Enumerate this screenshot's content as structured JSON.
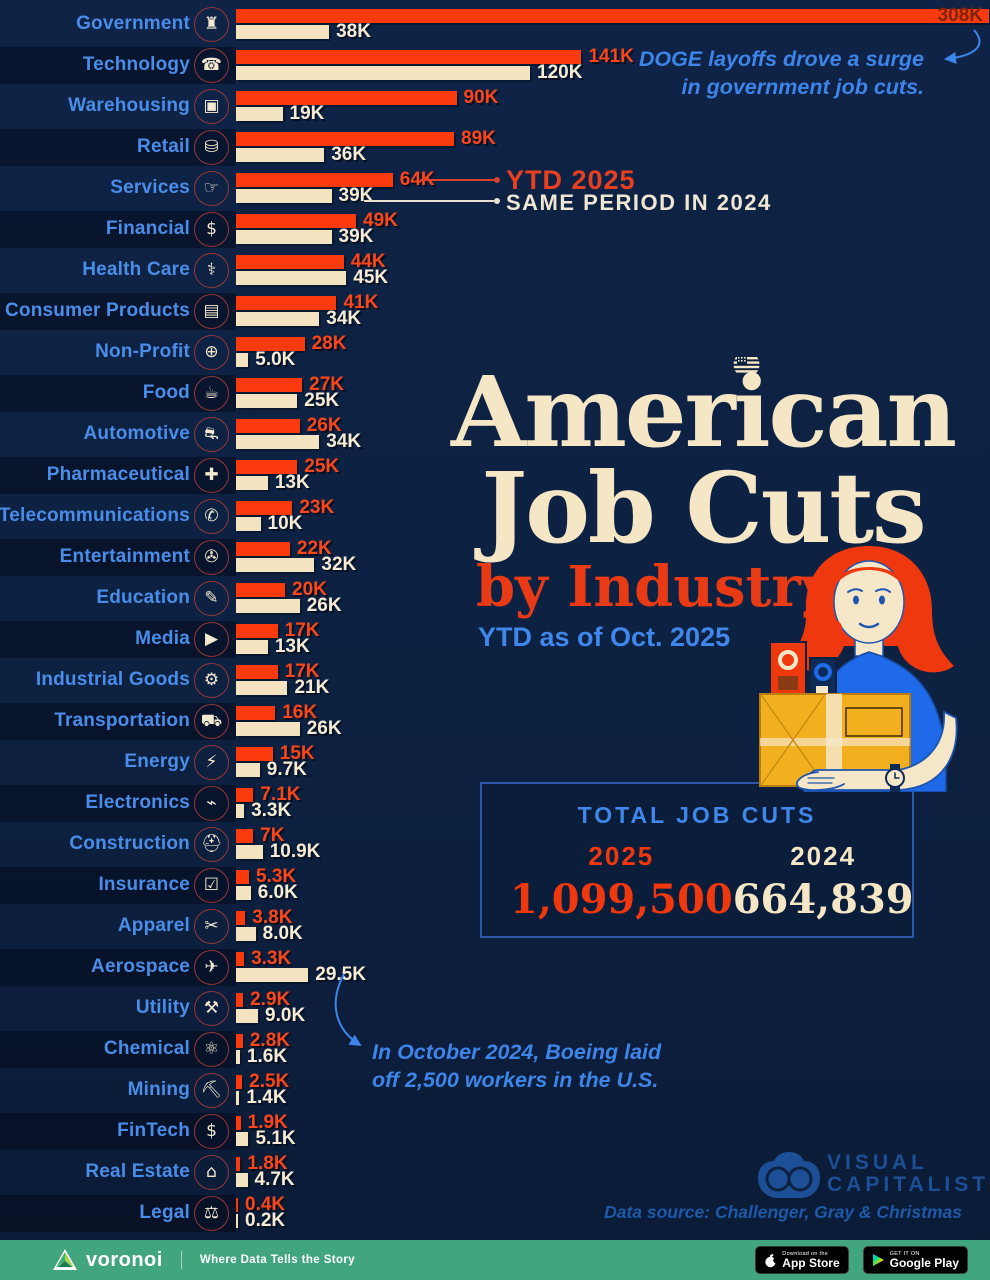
{
  "header": {
    "title_line1": "American",
    "title_line2": "Job Cuts",
    "subtitle": "by Industry",
    "period": "YTD as of Oct. 2025"
  },
  "legend": {
    "ytd_label": "YTD 2025",
    "same_label": "SAME PERIOD IN 2024"
  },
  "annotations": {
    "doge": [
      "DOGE layoffs drove a surge",
      "in government job cuts."
    ],
    "boeing": [
      "In October 2024, Boeing laid",
      "off 2,500 workers in the U.S."
    ]
  },
  "totals": {
    "heading": "TOTAL JOB CUTS",
    "y2025_label": "2025",
    "y2025_value": "1,099,500",
    "y2024_label": "2024",
    "y2024_value": "664,839"
  },
  "chart_data": {
    "type": "bar",
    "orientation": "horizontal",
    "title": "American Job Cuts by Industry",
    "subtitle": "YTD as of Oct. 2025",
    "unit": "thousands of job cuts (K)",
    "xlim_k": [
      0,
      310
    ],
    "grid": false,
    "legend_position": "inline at Services row",
    "categories": [
      "Government",
      "Technology",
      "Warehousing",
      "Retail",
      "Services",
      "Financial",
      "Health Care",
      "Consumer Products",
      "Non-Profit",
      "Food",
      "Automotive",
      "Pharmaceutical",
      "Telecommunications",
      "Entertainment",
      "Education",
      "Media",
      "Industrial Goods",
      "Transportation",
      "Energy",
      "Electronics",
      "Construction",
      "Insurance",
      "Apparel",
      "Aerospace",
      "Utility",
      "Chemical",
      "Mining",
      "FinTech",
      "Real Estate",
      "Legal"
    ],
    "icons": [
      {
        "name": "bank-icon",
        "glyph": "♜"
      },
      {
        "name": "smartphone-icon",
        "glyph": "☎"
      },
      {
        "name": "package-icon",
        "glyph": "▣"
      },
      {
        "name": "shopping-cart-icon",
        "glyph": "⛁"
      },
      {
        "name": "hand-icon",
        "glyph": "☞"
      },
      {
        "name": "dollar-icon",
        "glyph": "$"
      },
      {
        "name": "heart-cross-icon",
        "glyph": "⚕"
      },
      {
        "name": "shopping-bag-icon",
        "glyph": "▤"
      },
      {
        "name": "globe-icon",
        "glyph": "⊕"
      },
      {
        "name": "utensils-icon",
        "glyph": "☕"
      },
      {
        "name": "car-icon",
        "glyph": "⛐"
      },
      {
        "name": "pill-icon",
        "glyph": "✚"
      },
      {
        "name": "headset-icon",
        "glyph": "✆"
      },
      {
        "name": "movie-camera-icon",
        "glyph": "✇"
      },
      {
        "name": "graduation-cap-icon",
        "glyph": "✎"
      },
      {
        "name": "play-icon",
        "glyph": "▶"
      },
      {
        "name": "factory-icon",
        "glyph": "⚙"
      },
      {
        "name": "truck-icon",
        "glyph": "⛟"
      },
      {
        "name": "lightning-icon",
        "glyph": "⚡"
      },
      {
        "name": "plug-icon",
        "glyph": "⌁"
      },
      {
        "name": "hard-hat-icon",
        "glyph": "⛑"
      },
      {
        "name": "shield-check-icon",
        "glyph": "☑"
      },
      {
        "name": "tshirt-icon",
        "glyph": "✂"
      },
      {
        "name": "plane-icon",
        "glyph": "✈"
      },
      {
        "name": "crossed-tools-icon",
        "glyph": "⚒"
      },
      {
        "name": "molecule-icon",
        "glyph": "⚛"
      },
      {
        "name": "pickaxe-icon",
        "glyph": "⛏"
      },
      {
        "name": "chip-dollar-icon",
        "glyph": "$"
      },
      {
        "name": "house-icon",
        "glyph": "⌂"
      },
      {
        "name": "gavel-icon",
        "glyph": "⚖"
      }
    ],
    "series": [
      {
        "name": "YTD 2025",
        "color": "#FA3A0C",
        "values_k": [
          308,
          141,
          90,
          89,
          64,
          49,
          44,
          41,
          28,
          27,
          26,
          25,
          23,
          22,
          20,
          17,
          17,
          16,
          15,
          7.1,
          7,
          5.3,
          3.8,
          3.3,
          2.9,
          2.8,
          2.5,
          1.9,
          1.8,
          0.4
        ],
        "labels": [
          "308K",
          "141K",
          "90K",
          "89K",
          "64K",
          "49K",
          "44K",
          "41K",
          "28K",
          "27K",
          "26K",
          "25K",
          "23K",
          "22K",
          "20K",
          "17K",
          "17K",
          "16K",
          "15K",
          "7.1K",
          "7K",
          "5.3K",
          "3.8K",
          "3.3K",
          "2.9K",
          "2.8K",
          "2.5K",
          "1.9K",
          "1.8K",
          "0.4K"
        ]
      },
      {
        "name": "SAME PERIOD IN 2024",
        "color": "#F4E3C1",
        "values_k": [
          38,
          120,
          19,
          36,
          39,
          39,
          45,
          34,
          5.0,
          25,
          34,
          13,
          10,
          32,
          26,
          13,
          21,
          26,
          9.7,
          3.3,
          10.9,
          6.0,
          8.0,
          29.5,
          9.0,
          1.6,
          1.4,
          5.1,
          4.7,
          0.2
        ],
        "labels": [
          "38K",
          "120K",
          "19K",
          "36K",
          "39K",
          "39K",
          "45K",
          "34K",
          "5.0K",
          "25K",
          "34K",
          "13K",
          "10K",
          "32K",
          "26K",
          "13K",
          "21K",
          "26K",
          "9.7K",
          "3.3K",
          "10.9K",
          "6.0K",
          "8.0K",
          "29.5K",
          "9.0K",
          "1.6K",
          "1.4K",
          "5.1K",
          "4.7K",
          "0.2K"
        ]
      }
    ]
  },
  "branding": {
    "vc_line1": "VISUAL",
    "vc_line2": "CAPITALIST",
    "data_source": "Data source: Challenger, Gray & Christmas",
    "voronoi_name": "voronoi",
    "voronoi_tagline": "Where Data Tells the Story",
    "app_store_small": "Download on the",
    "app_store_big": "App Store",
    "play_small": "GET IT ON",
    "play_big": "Google Play"
  },
  "colors": {
    "background": "#0D2141",
    "bar_2025_red": "#FA3A0C",
    "bar_2024_cream": "#F4E3C1",
    "label_blue": "#4A8DE8",
    "title_cream": "#F5E6C5",
    "subtitle_red": "#E83B15",
    "annotation_blue": "#3D85E8",
    "footer_green": "#41A57D",
    "vc_logo_blue": "#1D4F96"
  }
}
